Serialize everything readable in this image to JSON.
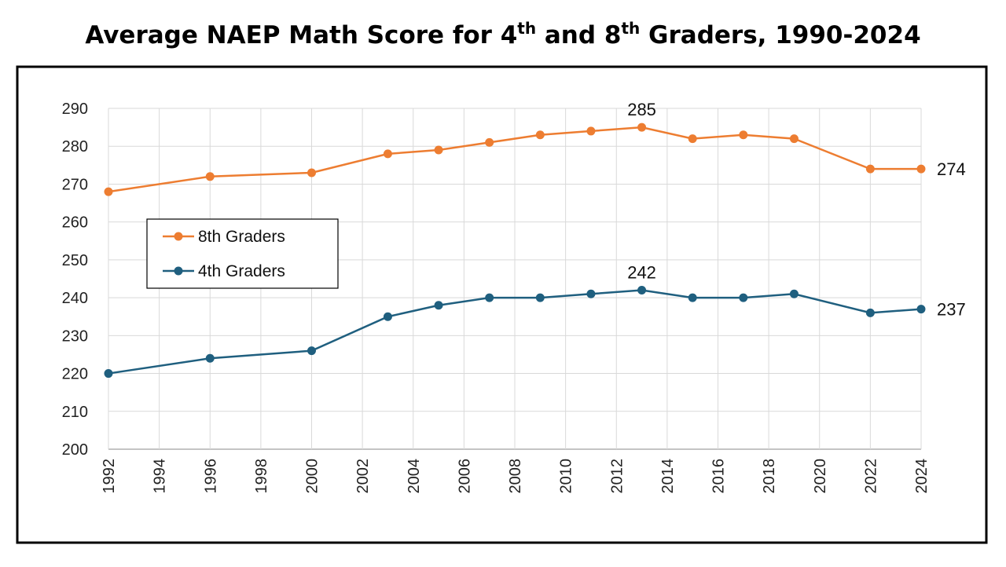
{
  "chart_data": {
    "type": "line",
    "title": {
      "main": "Average NAEP Math Score for 4",
      "sup1": "th",
      "mid": " and 8",
      "sup2": "th",
      "end": " Graders, 1990-2024"
    },
    "xlabel": "",
    "ylabel": "",
    "xlim": [
      1992,
      2024
    ],
    "ylim": [
      200,
      290
    ],
    "x_ticks": [
      "1992",
      "1994",
      "1996",
      "1998",
      "2000",
      "2002",
      "2004",
      "2006",
      "2008",
      "2010",
      "2012",
      "2014",
      "2016",
      "2018",
      "2020",
      "2022",
      "2024"
    ],
    "y_ticks": [
      "200",
      "210",
      "220",
      "230",
      "240",
      "250",
      "260",
      "270",
      "280",
      "290"
    ],
    "grid": true,
    "legend_position": "left-middle",
    "x": [
      1992,
      1996,
      2000,
      2003,
      2005,
      2007,
      2009,
      2011,
      2013,
      2015,
      2017,
      2019,
      2022,
      2024
    ],
    "series": [
      {
        "name": "8th Graders",
        "color": "#ED7D31",
        "values": [
          268,
          272,
          273,
          278,
          279,
          281,
          283,
          284,
          285,
          282,
          283,
          282,
          274,
          274
        ],
        "annotations": [
          {
            "x": 2013,
            "text": "285",
            "pos": "above"
          },
          {
            "x": 2024,
            "text": "274",
            "pos": "right"
          }
        ]
      },
      {
        "name": "4th Graders",
        "color": "#1F5F7F",
        "values": [
          220,
          224,
          226,
          235,
          238,
          240,
          240,
          241,
          242,
          240,
          240,
          241,
          236,
          237
        ],
        "annotations": [
          {
            "x": 2013,
            "text": "242",
            "pos": "above"
          },
          {
            "x": 2024,
            "text": "237",
            "pos": "right"
          }
        ]
      }
    ]
  }
}
